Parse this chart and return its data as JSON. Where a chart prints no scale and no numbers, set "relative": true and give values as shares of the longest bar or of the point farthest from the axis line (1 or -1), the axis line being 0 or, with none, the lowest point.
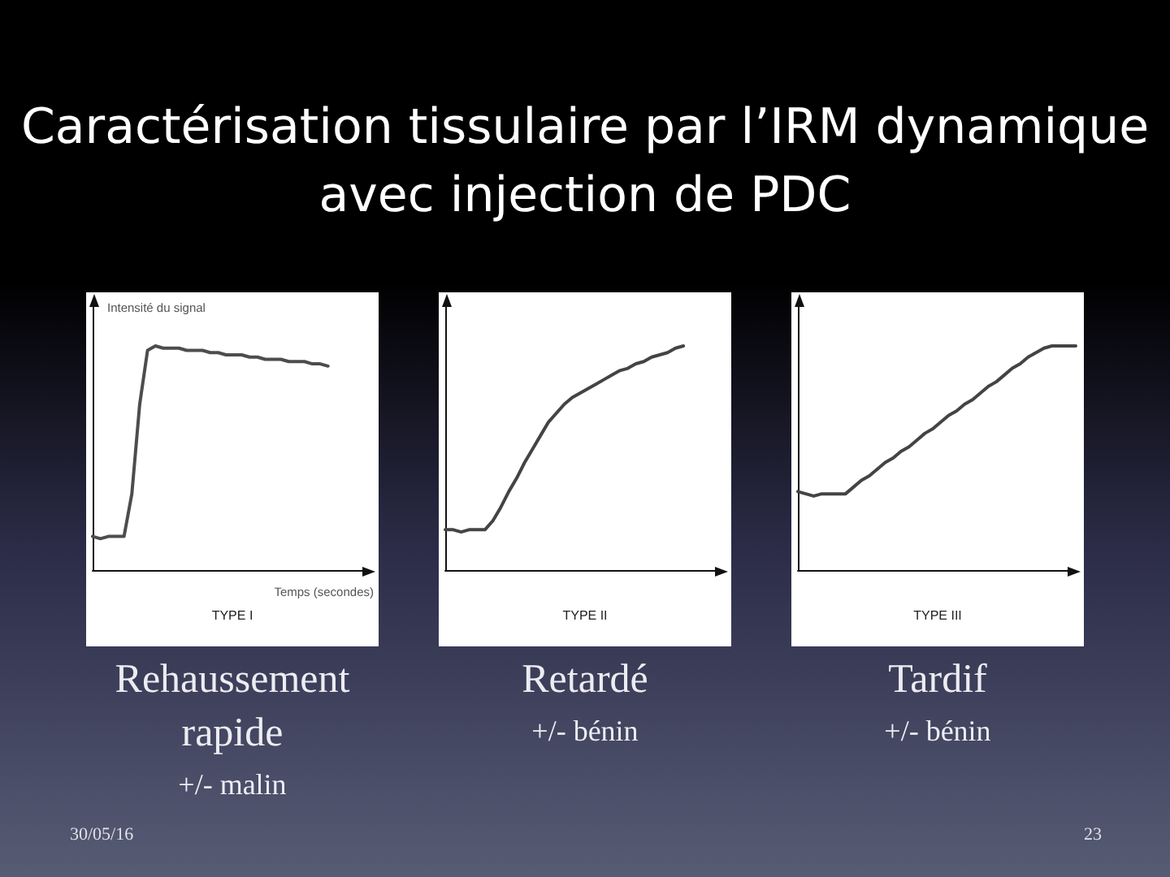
{
  "chart_data": [
    {
      "type": "other",
      "title": "Caractérisation tissulaire par l’IRM dynamique avec injection de PDC",
      "annotations": [
        "30/05/16",
        "23"
      ]
    },
    {
      "type": "line",
      "title": "TYPE I",
      "xlabel": "Temps (secondes)",
      "ylabel": "Intensité du signal",
      "relative": true,
      "color": "#4d4d4d",
      "categories": [
        null,
        null,
        null,
        null,
        null,
        null,
        null,
        null,
        null,
        null,
        null,
        null,
        null,
        null,
        null,
        null,
        null,
        null,
        null,
        null,
        null,
        null,
        null,
        null,
        null,
        null,
        null,
        null,
        null,
        null,
        null,
        null,
        null,
        null,
        null,
        null
      ],
      "values": [
        0.15,
        0.14,
        0.15,
        0.15,
        0.15,
        0.34,
        0.74,
        0.98,
        1.0,
        0.99,
        0.99,
        0.99,
        0.98,
        0.98,
        0.98,
        0.97,
        0.97,
        0.96,
        0.96,
        0.96,
        0.95,
        0.95,
        0.94,
        0.94,
        0.94,
        0.93,
        0.93,
        0.93,
        0.92,
        0.92,
        0.91,
        null,
        null,
        null,
        null,
        null
      ],
      "annotations": [
        "Rehaussement rapide",
        "+/- malin"
      ]
    },
    {
      "type": "line",
      "title": "TYPE II",
      "relative": true,
      "color": "#444444",
      "categories": [
        null,
        null,
        null,
        null,
        null,
        null,
        null,
        null,
        null,
        null,
        null,
        null,
        null,
        null,
        null,
        null,
        null,
        null,
        null,
        null,
        null,
        null,
        null,
        null,
        null,
        null,
        null,
        null,
        null,
        null,
        null,
        null,
        null,
        null,
        null,
        null
      ],
      "values": [
        0.18,
        0.18,
        0.17,
        0.18,
        0.18,
        0.18,
        0.22,
        0.28,
        0.35,
        0.41,
        0.48,
        0.54,
        0.6,
        0.66,
        0.7,
        0.74,
        0.77,
        0.79,
        0.81,
        0.83,
        0.85,
        0.87,
        0.89,
        0.9,
        0.92,
        0.93,
        0.95,
        0.96,
        0.97,
        0.99,
        1.0,
        null,
        null,
        null,
        null,
        null
      ],
      "annotations": [
        "Retardé",
        "+/- bénin"
      ]
    },
    {
      "type": "line",
      "title": "TYPE III",
      "relative": true,
      "color": "#444444",
      "categories": [
        null,
        null,
        null,
        null,
        null,
        null,
        null,
        null,
        null,
        null,
        null,
        null,
        null,
        null,
        null,
        null,
        null,
        null,
        null,
        null,
        null,
        null,
        null,
        null,
        null,
        null,
        null,
        null,
        null,
        null,
        null,
        null,
        null,
        null,
        null,
        null
      ],
      "values": [
        0.35,
        0.34,
        0.33,
        0.34,
        0.34,
        0.34,
        0.34,
        0.37,
        0.4,
        0.42,
        0.45,
        0.48,
        0.5,
        0.53,
        0.55,
        0.58,
        0.61,
        0.63,
        0.66,
        0.69,
        0.71,
        0.74,
        0.76,
        0.79,
        0.82,
        0.84,
        0.87,
        0.9,
        0.92,
        0.95,
        0.97,
        0.99,
        1.0,
        1.0,
        1.0,
        1.0
      ],
      "annotations": [
        "Tardif",
        "+/- bénin"
      ]
    }
  ]
}
